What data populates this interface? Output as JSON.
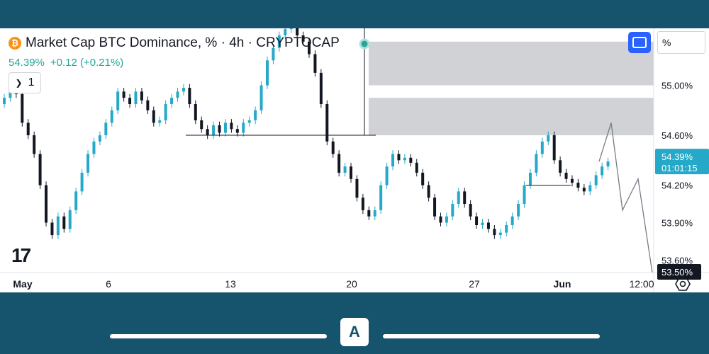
{
  "header": {
    "title": "Market Cap BTC Dominance, % · 4h · CRYPTOCAP",
    "price": "54.39%",
    "change": "+0.12 (+0.21%)",
    "toggle_count": "1",
    "unit_label": "%",
    "btc_glyph": "₿"
  },
  "colors": {
    "up": "#26a9c9",
    "down": "#131722",
    "zone": "#d1d2d6",
    "accent": "#26a69a",
    "frame": "#16536d"
  },
  "icons": [
    "bitcoin-icon",
    "chevron-down-icon",
    "fullscreen-icon",
    "tradingview-logo",
    "settings-icon",
    "app-logo-icon"
  ],
  "app_logo_text": "A",
  "chart_data": {
    "type": "candlestick",
    "title": "Market Cap BTC Dominance, % · 4h · CRYPTOCAP",
    "xlabel": "",
    "ylabel": "",
    "x_ticks": [
      "May",
      "6",
      "13",
      "20",
      "27",
      "Jun",
      "12:00"
    ],
    "y_ticks": [
      "55.00%",
      "54.60%",
      "54.20%",
      "53.90%",
      "53.60%"
    ],
    "ylim": [
      53.5,
      55.4
    ],
    "current_price_label": "54.39%",
    "countdown_label": "01:01:15",
    "support_label": "53.50%",
    "close_series": [
      54.9,
      54.95,
      54.93,
      54.7,
      54.6,
      54.45,
      54.2,
      53.9,
      53.8,
      53.95,
      53.85,
      54.0,
      54.15,
      54.3,
      54.45,
      54.55,
      54.6,
      54.7,
      54.8,
      54.95,
      54.9,
      54.85,
      54.95,
      54.88,
      54.8,
      54.7,
      54.72,
      54.85,
      54.9,
      54.95,
      54.98,
      54.85,
      54.72,
      54.65,
      54.6,
      54.68,
      54.62,
      54.7,
      54.65,
      54.62,
      54.7,
      54.72,
      54.8,
      55.0,
      55.2,
      55.3,
      55.4,
      55.45,
      55.5,
      55.4,
      55.35,
      55.25,
      55.1,
      54.85,
      54.55,
      54.45,
      54.3,
      54.35,
      54.25,
      54.1,
      54.0,
      53.95,
      54.0,
      54.2,
      54.35,
      54.45,
      54.4,
      54.42,
      54.38,
      54.3,
      54.2,
      54.1,
      53.95,
      53.9,
      53.95,
      54.05,
      54.15,
      54.05,
      53.95,
      53.88,
      53.9,
      53.85,
      53.8,
      53.82,
      53.88,
      53.95,
      54.05,
      54.2,
      54.3,
      54.45,
      54.55,
      54.6,
      54.4,
      54.3,
      54.25,
      54.22,
      54.18,
      54.15,
      54.2,
      54.28,
      54.35,
      54.39
    ],
    "candle_dates": "4h candles from late April through the first days of June",
    "zones": [
      {
        "from": 55.0,
        "to": 55.35,
        "label": "upper-resistance-zone"
      },
      {
        "from": 54.6,
        "to": 54.9,
        "label": "lower-resistance-zone"
      }
    ],
    "horizontal_levels": [
      54.6,
      54.2,
      53.5
    ],
    "projection": [
      54.39,
      54.7,
      54.0,
      54.25,
      53.5
    ]
  }
}
